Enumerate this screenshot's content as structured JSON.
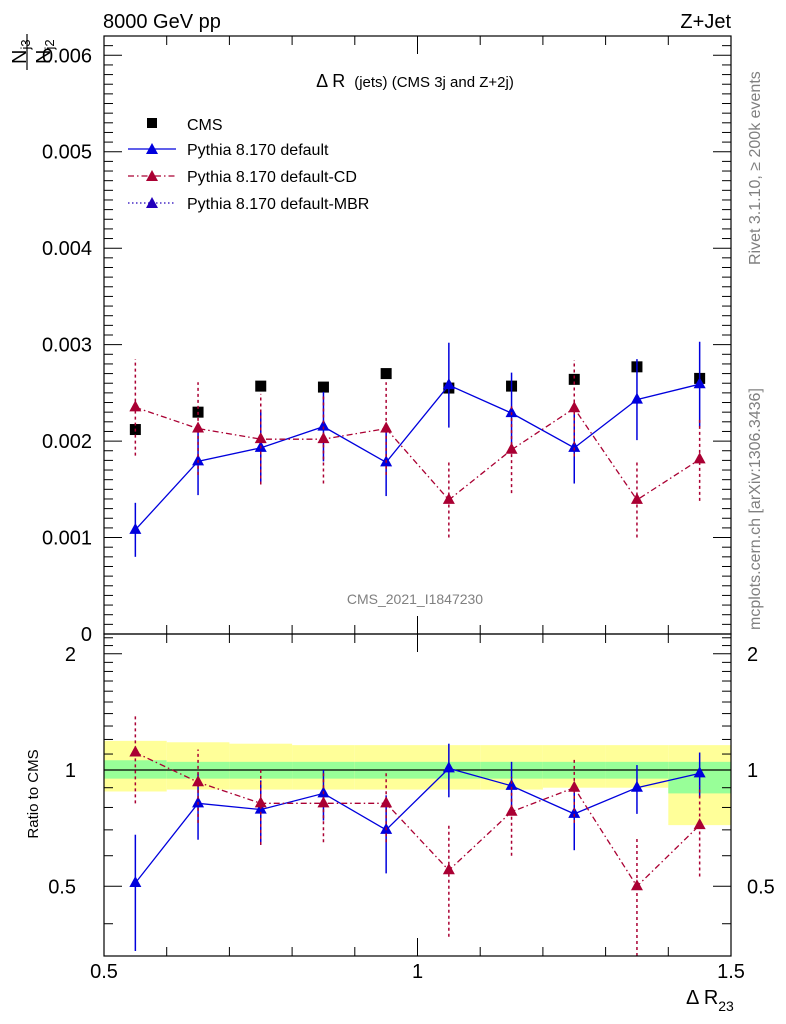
{
  "header": {
    "energy_label": "8000 GeV pp",
    "process_label": "Z+Jet",
    "side_top": "Rivet 3.1.10, ≥ 200k events",
    "side_bottom": "mcplots.cern.ch [arXiv:1306.3436]",
    "analysis_id": "CMS_2021_I1847230"
  },
  "colors": {
    "data": "#000000",
    "default": "#0000dd",
    "default_cd": "#aa0033",
    "default_mbr": "#2200bb",
    "band_inner": "#98ff98",
    "band_outer": "#ffff99"
  },
  "chart_data": [
    {
      "type": "scatter",
      "panel": "main",
      "title_prefix": "Δ R",
      "title_main": "(jets) (CMS 3j and Z+2j)",
      "ylabel_main": "N",
      "ylabel_sub1": "j3",
      "ylabel_den": "N",
      "ylabel_sub2": "j2",
      "xlim": [
        0.5,
        1.5
      ],
      "ylim": [
        0,
        0.0062
      ],
      "yticks": [
        0,
        0.001,
        0.002,
        0.003,
        0.004,
        0.005,
        0.006
      ],
      "ytick_labels": [
        "0",
        "0.001",
        "0.002",
        "0.003",
        "0.004",
        "0.005",
        "0.006"
      ],
      "legend_position": "top-left",
      "x": [
        0.55,
        0.65,
        0.75,
        0.85,
        0.95,
        1.05,
        1.15,
        1.25,
        1.35,
        1.45
      ],
      "series": [
        {
          "name": "CMS",
          "key": "data",
          "style": "square",
          "values": [
            0.00212,
            0.0023,
            0.00257,
            0.00256,
            0.0027,
            0.00255,
            0.00257,
            0.00264,
            0.00277,
            0.00265
          ]
        },
        {
          "name": "Pythia 8.170 default",
          "key": "default",
          "style": "solid",
          "values": [
            0.00108,
            0.00179,
            0.00193,
            0.00215,
            0.00178,
            0.00258,
            0.00229,
            0.00193,
            0.00243,
            0.00259
          ],
          "err": [
            0.00028,
            0.00035,
            0.00037,
            0.00036,
            0.00035,
            0.00044,
            0.00042,
            0.00037,
            0.00042,
            0.00044
          ]
        },
        {
          "name": "Pythia 8.170 default-CD",
          "key": "default_cd",
          "style": "dashdot",
          "values": [
            0.00235,
            0.00213,
            0.00202,
            0.00202,
            0.00213,
            0.00139,
            0.00191,
            0.00234,
            0.00139,
            0.00181
          ],
          "err": [
            0.0005,
            0.00048,
            0.00047,
            0.00046,
            0.00048,
            0.00039,
            0.00045,
            0.0005,
            0.00039,
            0.00043
          ]
        },
        {
          "name": "Pythia 8.170 default-MBR",
          "key": "default_mbr",
          "style": "dotted",
          "values": []
        }
      ]
    },
    {
      "type": "line",
      "panel": "ratio",
      "ylabel": "Ratio to CMS",
      "xlabel_main": "Δ R",
      "xlabel_sub": "23",
      "xlim": [
        0.5,
        1.5
      ],
      "ylim": [
        0.33,
        2.25
      ],
      "yticks": [
        0.5,
        1,
        2
      ],
      "ytick_labels": [
        "0.5",
        "1",
        "2"
      ],
      "xticks": [
        0.5,
        1,
        1.5
      ],
      "xtick_labels": [
        "0.5",
        "1",
        "1.5"
      ],
      "x": [
        0.55,
        0.65,
        0.75,
        0.85,
        0.95,
        1.05,
        1.15,
        1.25,
        1.35,
        1.45
      ],
      "bands": {
        "edges": [
          0.5,
          0.6,
          0.7,
          0.8,
          0.9,
          1.0,
          1.1,
          1.2,
          1.3,
          1.4,
          1.5
        ],
        "inner_lo": [
          0.95,
          0.95,
          0.95,
          0.95,
          0.95,
          0.95,
          0.95,
          0.95,
          0.95,
          0.87
        ],
        "inner_hi": [
          1.06,
          1.05,
          1.05,
          1.05,
          1.05,
          1.05,
          1.05,
          1.05,
          1.05,
          1.05
        ],
        "outer_lo": [
          0.88,
          0.89,
          0.89,
          0.89,
          0.89,
          0.89,
          0.89,
          0.9,
          0.9,
          0.72
        ],
        "outer_hi": [
          1.19,
          1.18,
          1.17,
          1.16,
          1.16,
          1.16,
          1.16,
          1.16,
          1.16,
          1.16
        ]
      },
      "series": [
        {
          "name": "Pythia 8.170 default",
          "key": "default",
          "style": "solid",
          "values": [
            0.51,
            0.82,
            0.79,
            0.87,
            0.7,
            1.01,
            0.91,
            0.77,
            0.9,
            0.98
          ],
          "err": [
            0.17,
            0.16,
            0.15,
            0.13,
            0.16,
            0.16,
            0.14,
            0.15,
            0.13,
            0.13
          ]
        },
        {
          "name": "Pythia 8.170 default-CD",
          "key": "default_cd",
          "style": "dashdot",
          "values": [
            1.11,
            0.93,
            0.82,
            0.82,
            0.82,
            0.55,
            0.78,
            0.9,
            0.5,
            0.72
          ],
          "err": [
            0.29,
            0.2,
            0.18,
            0.17,
            0.17,
            0.18,
            0.18,
            0.17,
            0.17,
            0.19
          ]
        }
      ]
    }
  ]
}
